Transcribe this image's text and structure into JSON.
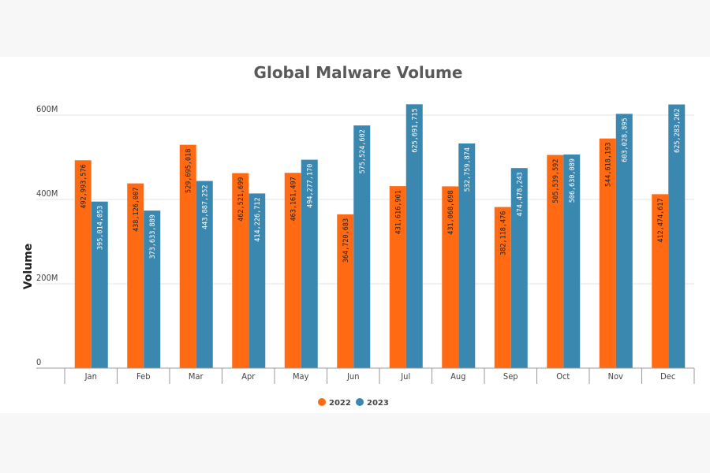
{
  "chart_data": {
    "type": "bar",
    "title": "Global Malware Volume",
    "ylabel": "Volume",
    "xlabel": "",
    "categories": [
      "Jan",
      "Feb",
      "Mar",
      "Apr",
      "May",
      "Jun",
      "Jul",
      "Aug",
      "Sep",
      "Oct",
      "Nov",
      "Dec"
    ],
    "ylim": [
      0,
      630000000
    ],
    "yticks": [
      {
        "value": 0,
        "label": "0"
      },
      {
        "value": 200000000,
        "label": "200M"
      },
      {
        "value": 400000000,
        "label": "400M"
      },
      {
        "value": 600000000,
        "label": "600M"
      }
    ],
    "grid": true,
    "legend_position": "bottom",
    "series": [
      {
        "name": "2022",
        "color": "#ff6a13",
        "label_color": "#222222",
        "values": [
          492993576,
          438126007,
          529695018,
          462521699,
          463161497,
          364720683,
          431616901,
          431068698,
          382118476,
          505539592,
          544618193,
          412474617
        ],
        "labels": [
          "492,993,576",
          "438,126,007",
          "529,695,018",
          "462,521,699",
          "463,161,497",
          "364,720,683",
          "431,616,901",
          "431,068,698",
          "382,118,476",
          "505,539,592",
          "544,618,193",
          "412,474,617"
        ]
      },
      {
        "name": "2023",
        "color": "#3a87b0",
        "label_color": "#ffffff",
        "values": [
          395014053,
          373633889,
          443887252,
          414226712,
          494277170,
          575524602,
          625691715,
          532759874,
          474478243,
          506630089,
          603028895,
          625283262
        ],
        "labels": [
          "395,014,053",
          "373,633,889",
          "443,887,252",
          "414,226,712",
          "494,277,170",
          "575,524,602",
          "625,691,715",
          "532,759,874",
          "474,478,243",
          "506,630,089",
          "603,028,895",
          "625,283,262"
        ]
      }
    ]
  }
}
